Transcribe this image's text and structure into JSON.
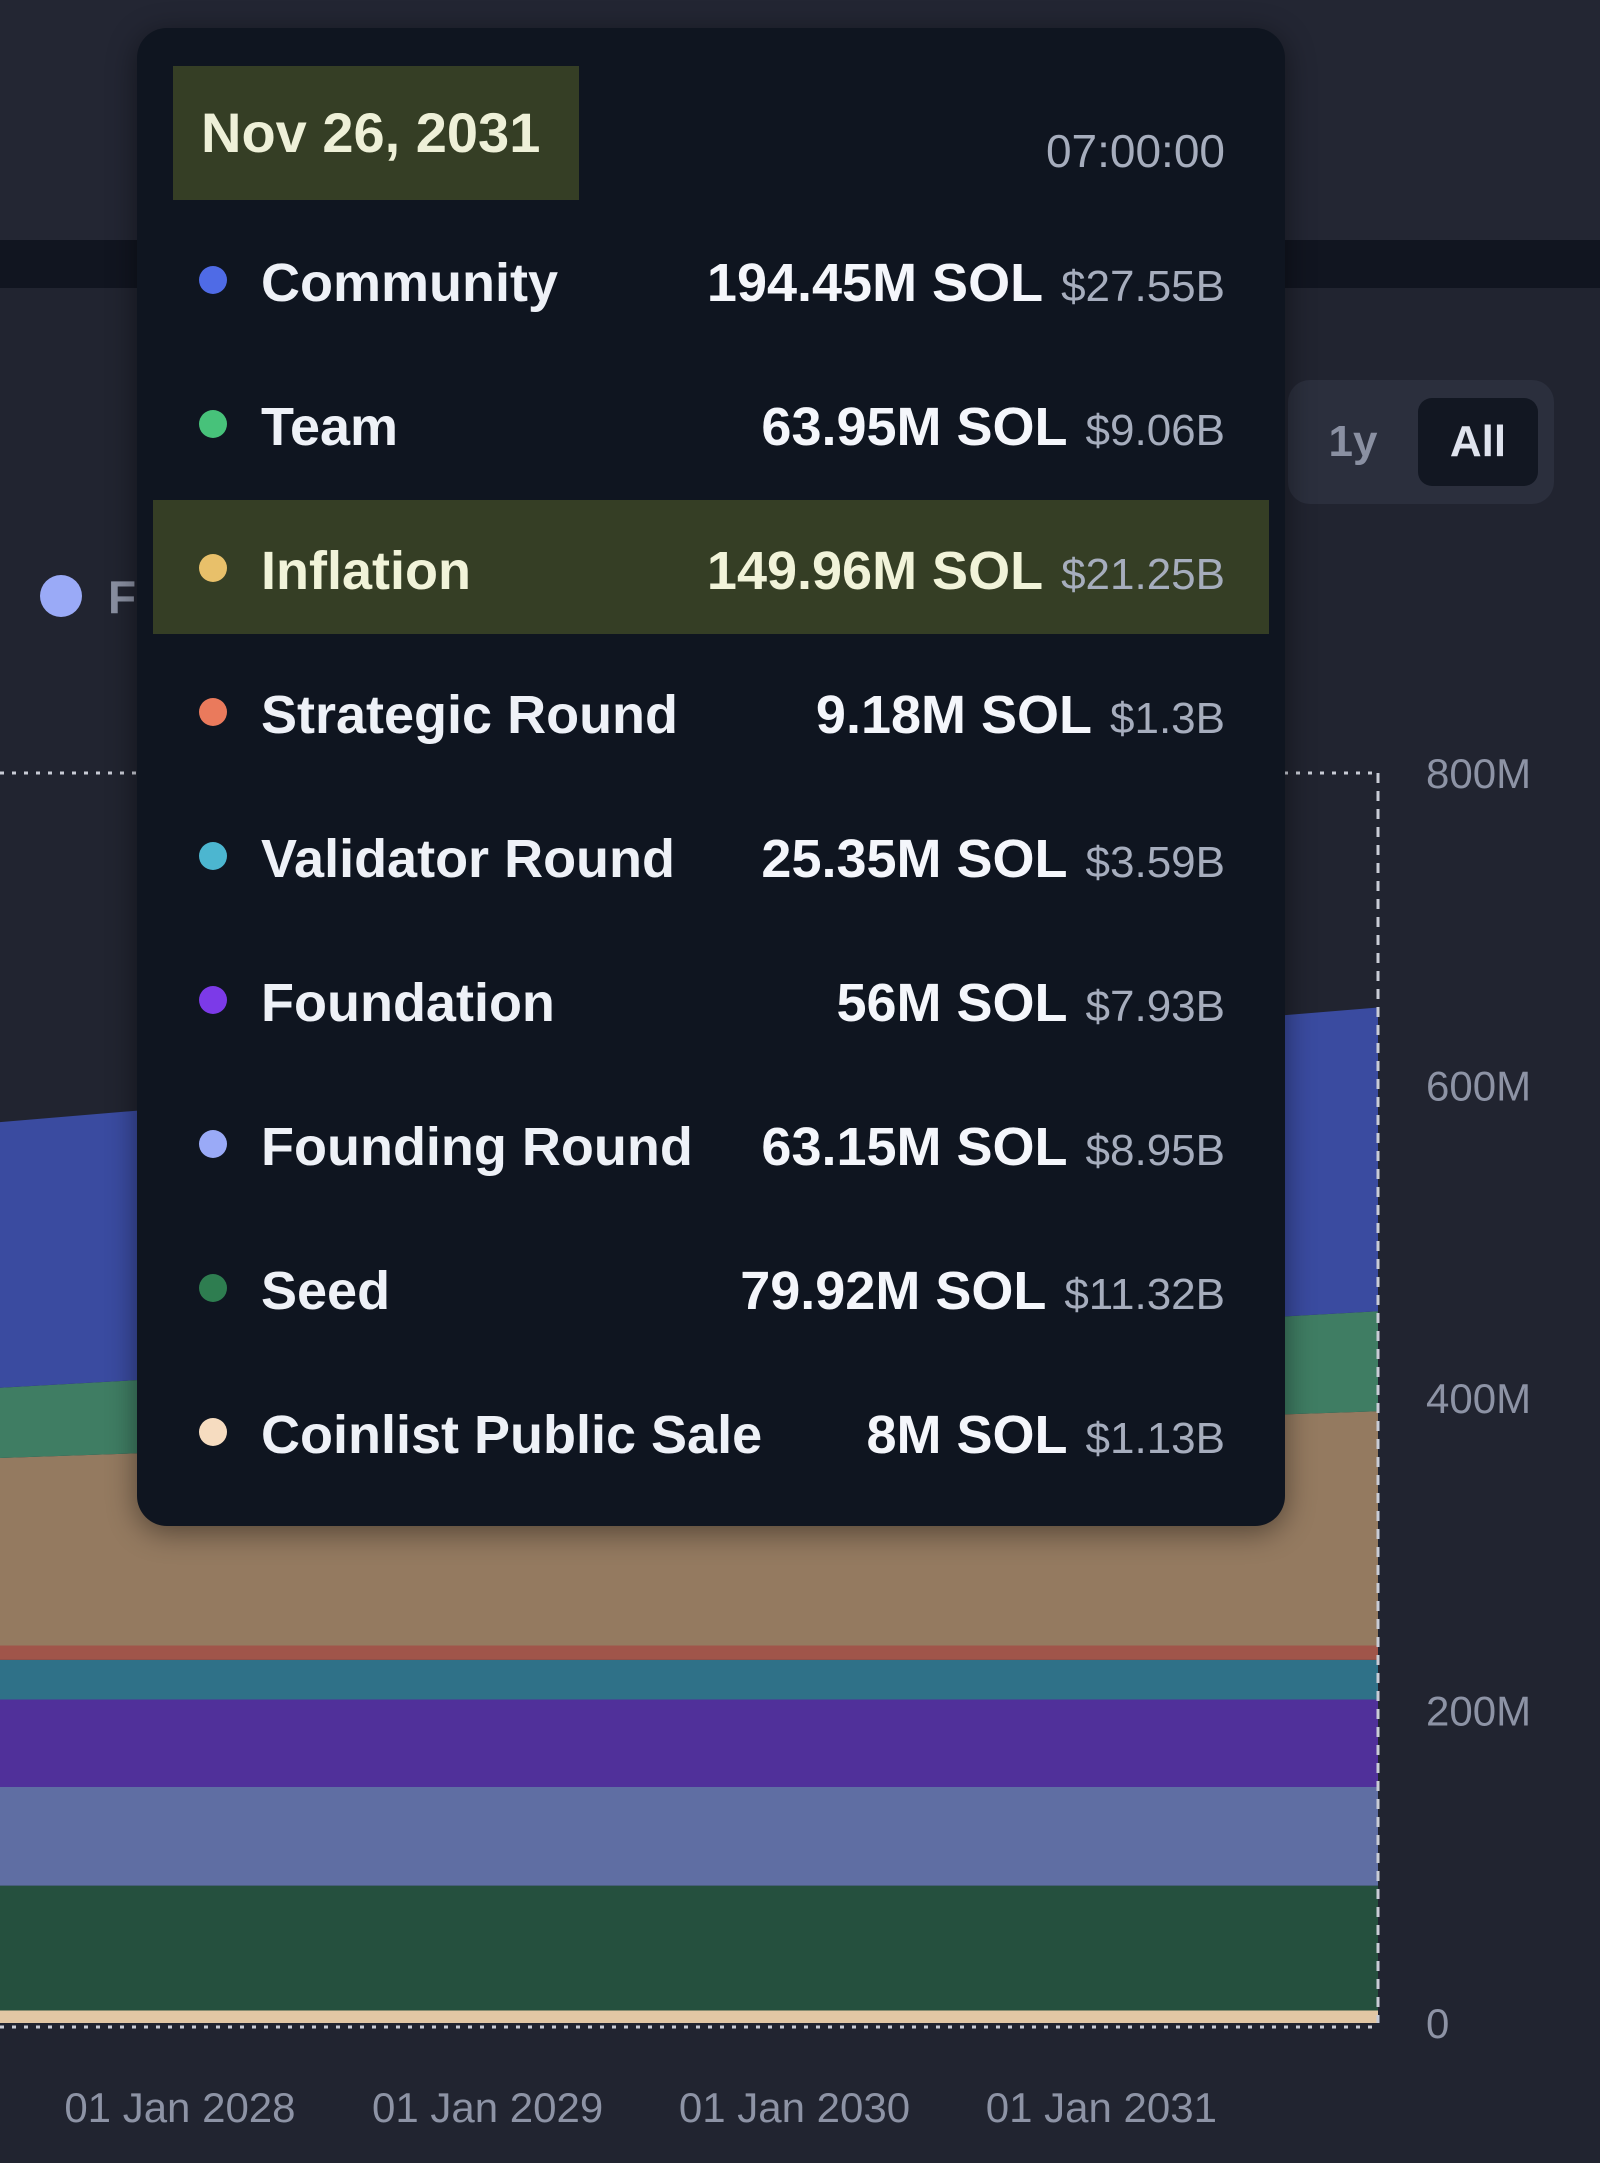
{
  "range_selector": {
    "one_year": "1y",
    "all": "All"
  },
  "legend_partial": {
    "label": "F",
    "color": "#9aaaf7"
  },
  "tooltip": {
    "date": "Nov 26, 2031",
    "time": "07:00:00",
    "rows": [
      {
        "label": "Community",
        "sol": "194.45M SOL",
        "usd": "$27.55B",
        "color": "#4f6be6",
        "highlighted": false
      },
      {
        "label": "Team",
        "sol": "63.95M SOL",
        "usd": "$9.06B",
        "color": "#47c27a",
        "highlighted": false
      },
      {
        "label": "Inflation",
        "sol": "149.96M SOL",
        "usd": "$21.25B",
        "color": "#e8c06a",
        "highlighted": true
      },
      {
        "label": "Strategic Round",
        "sol": "9.18M SOL",
        "usd": "$1.3B",
        "color": "#ea7a5c",
        "highlighted": false
      },
      {
        "label": "Validator Round",
        "sol": "25.35M SOL",
        "usd": "$3.59B",
        "color": "#4cb6d0",
        "highlighted": false
      },
      {
        "label": "Foundation",
        "sol": "56M SOL",
        "usd": "$7.93B",
        "color": "#7c3ae8",
        "highlighted": false
      },
      {
        "label": "Founding Round",
        "sol": "63.15M SOL",
        "usd": "$8.95B",
        "color": "#9aaaf7",
        "highlighted": false
      },
      {
        "label": "Seed",
        "sol": "79.92M SOL",
        "usd": "$11.32B",
        "color": "#2e7d50",
        "highlighted": false
      },
      {
        "label": "Coinlist Public Sale",
        "sol": "8M SOL",
        "usd": "$1.13B",
        "color": "#f6dcc0",
        "highlighted": false
      }
    ]
  },
  "chart_data": {
    "type": "area",
    "stacked": true,
    "x": [
      "2027-06-01",
      "2031-11-26"
    ],
    "x_tick_labels": [
      "01 Jan 2028",
      "01 Jan 2029",
      "01 Jan 2030",
      "01 Jan 2031"
    ],
    "x_tick_dates": [
      "2028-01-01",
      "2029-01-01",
      "2030-01-01",
      "2031-01-01"
    ],
    "y_tick_labels": [
      "800M",
      "600M",
      "400M",
      "200M",
      "0"
    ],
    "y_tick_values": [
      800000000,
      600000000,
      400000000,
      200000000,
      0
    ],
    "ylim": [
      0,
      800000000
    ],
    "hover_date": "2031-11-26",
    "series": [
      {
        "name": "Coinlist Public Sale",
        "color": "#e2c7a4",
        "values": [
          8000000,
          8000000
        ]
      },
      {
        "name": "Seed",
        "color": "#25503e",
        "values": [
          79920000,
          79920000
        ]
      },
      {
        "name": "Founding Round",
        "color": "#5f6ea3",
        "values": [
          63150000,
          63150000
        ]
      },
      {
        "name": "Foundation",
        "color": "#50309a",
        "values": [
          56000000,
          56000000
        ]
      },
      {
        "name": "Validator Round",
        "color": "#2f7188",
        "values": [
          25350000,
          25350000
        ]
      },
      {
        "name": "Strategic Round",
        "color": "#a0554a",
        "values": [
          9180000,
          9180000
        ]
      },
      {
        "name": "Inflation",
        "color": "#947a60",
        "values": [
          120000000,
          149960000
        ]
      },
      {
        "name": "Team",
        "color": "#3f7d63",
        "values": [
          45000000,
          63950000
        ]
      },
      {
        "name": "Community",
        "color": "#3a4ba0",
        "values": [
          170000000,
          194450000
        ]
      }
    ]
  }
}
